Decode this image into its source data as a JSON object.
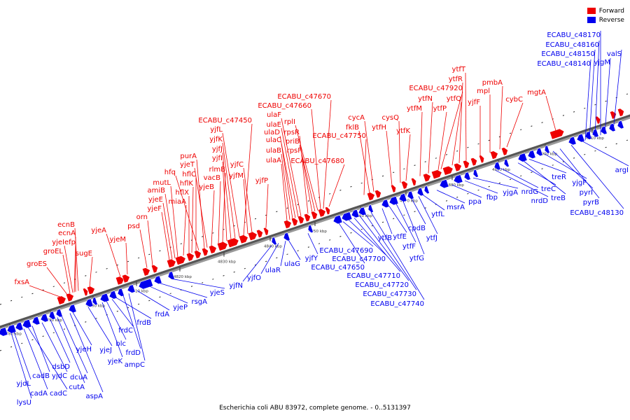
{
  "legend": {
    "forward": {
      "label": "Forward",
      "color": "#ee0000"
    },
    "reverse": {
      "label": "Reverse",
      "color": "#0000ee"
    }
  },
  "caption": "Escherichia coli ABU 83972, complete genome. - 0..5131397",
  "tick_labels": [
    "4780 kbp",
    "4790 kbp",
    "4800 kbp",
    "4810 kbp",
    "4820 kbp",
    "4830 kbp",
    "4840 kbp",
    "4850 kbp",
    "4860 kbp",
    "4870 kbp",
    "4880 kbp",
    "4890 kbp",
    "4900 kbp",
    "4910 kbp"
  ],
  "forward_genes": [
    "fxsA",
    "groES",
    "groEL",
    "yjeI",
    "efp",
    "ecnA",
    "ecnB",
    "sugE",
    "yjeA",
    "yjeM",
    "psd",
    "orn",
    "yjeF",
    "yjeE",
    "amiB",
    "mutL",
    "miaA",
    "hflX",
    "hflK",
    "hflC",
    "hfq",
    "purA",
    "yjeT",
    "yjeB",
    "vacB",
    "rlmB",
    "yjfI",
    "yjfJ",
    "yjfK",
    "yjfL",
    "ECABU_c47450",
    "yjfM",
    "yjfC",
    "yjfP",
    "ulaA",
    "ulaB",
    "ulaC",
    "ulaD",
    "ulaE",
    "ulaF",
    "rpsR",
    "rpsF",
    "priB",
    "rplI",
    "ECABU_c47660",
    "ECABU_c47670",
    "ECABU_c47680",
    "ECABU_c47750",
    "fklB",
    "cycA",
    "ytfH",
    "cysQ",
    "ytfK",
    "ytfM",
    "ytfN",
    "ECABU_c47920",
    "ytfP",
    "ytfQ",
    "ytfR",
    "ytfT",
    "yjfF",
    "mpl",
    "pmbA",
    "cybC",
    "mgtA"
  ],
  "reverse_genes": [
    "lysU",
    "yjdL",
    "cadC",
    "cadA",
    "cadB",
    "yjdC",
    "dsbD",
    "cutA",
    "dcuA",
    "aspA",
    "yjeH",
    "yjeJ",
    "yjeK",
    "blc",
    "frdC",
    "frdB",
    "frdD",
    "ampC",
    "frdA",
    "yjeP",
    "rsgA",
    "yjeS",
    "yjfN",
    "yjfO",
    "ulaR",
    "ulaG",
    "yjfY",
    "ECABU_c47690",
    "ECABU_c47700",
    "ECABU_c47650",
    "ECABU_c47710",
    "ECABU_c47720",
    "ECABU_c47730",
    "ECABU_c47740",
    "ytfB",
    "ytfE",
    "ytfF",
    "ytfG",
    "cpdB",
    "ytfJ",
    "ytfL",
    "msrA",
    "ppa",
    "fbp",
    "yjgA",
    "nrdD",
    "nrdG",
    "treC",
    "treB",
    "treR",
    "yjgF",
    "pyrI",
    "pyrB",
    "ECABU_c48130",
    "argI",
    "ECABU_c48140",
    "ECABU_c48150",
    "ECABU_c48160",
    "ECABU_c48170",
    "yjgM",
    "valS"
  ]
}
